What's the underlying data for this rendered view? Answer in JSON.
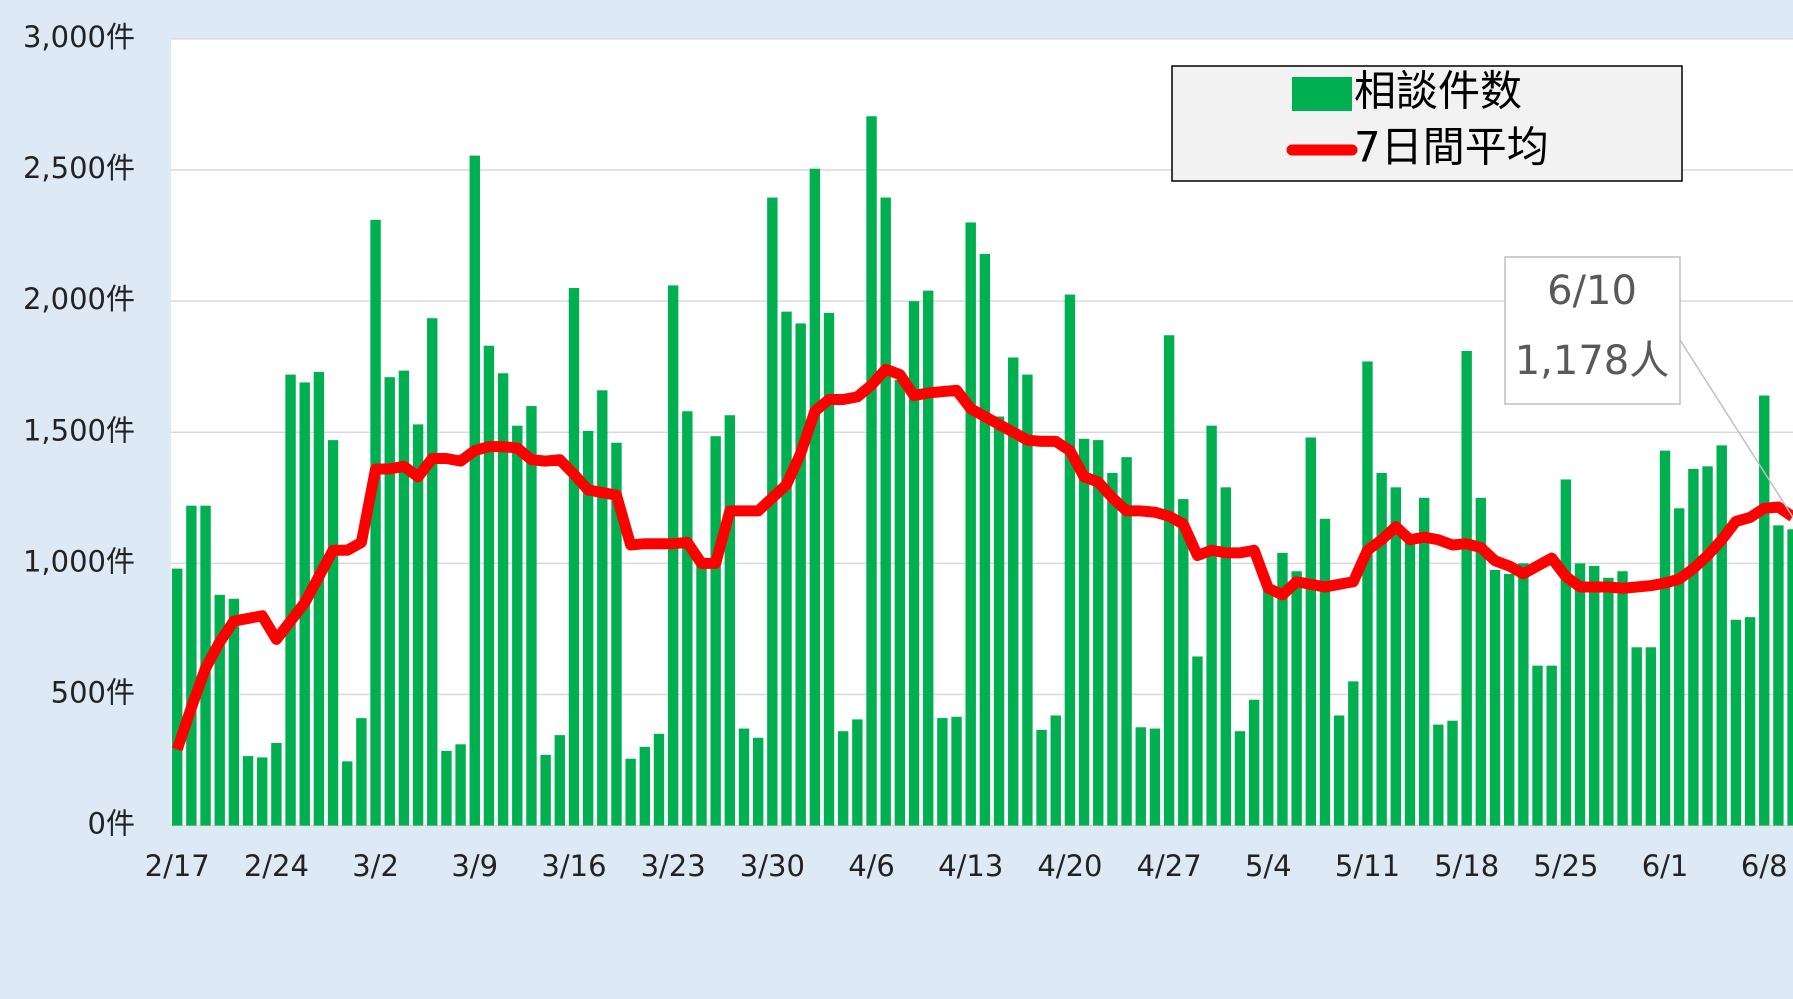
{
  "chart_data": {
    "type": "bar",
    "categories": [
      "2/17",
      null,
      null,
      null,
      null,
      null,
      null,
      "2/24",
      null,
      null,
      null,
      null,
      null,
      null,
      "3/2",
      null,
      null,
      null,
      null,
      null,
      null,
      "3/9",
      null,
      null,
      null,
      null,
      null,
      null,
      "3/16",
      null,
      null,
      null,
      null,
      null,
      null,
      "3/23",
      null,
      null,
      null,
      null,
      null,
      null,
      "3/30",
      null,
      null,
      null,
      null,
      null,
      null,
      "4/6",
      null,
      null,
      null,
      null,
      null,
      null,
      "4/13",
      null,
      null,
      null,
      null,
      null,
      null,
      "4/20",
      null,
      null,
      null,
      null,
      null,
      null,
      "4/27",
      null,
      null,
      null,
      null,
      null,
      null,
      "5/4",
      null,
      null,
      null,
      null,
      null,
      null,
      "5/11",
      null,
      null,
      null,
      null,
      null,
      null,
      "5/18",
      null,
      null,
      null,
      null,
      null,
      null,
      "5/25",
      null,
      null,
      null,
      null,
      null,
      null,
      "6/1",
      null,
      null,
      null,
      null,
      null,
      null,
      "6/8",
      null,
      null
    ],
    "series": [
      {
        "name": "相談件数",
        "type": "bar",
        "color": "#00b050",
        "values": [
          980,
          1220,
          1220,
          880,
          865,
          265,
          260,
          315,
          1720,
          1690,
          1730,
          1470,
          245,
          410,
          2310,
          1710,
          1735,
          1530,
          1935,
          285,
          310,
          2555,
          1830,
          1725,
          1525,
          1600,
          270,
          345,
          2050,
          1505,
          1660,
          1460,
          255,
          300,
          350,
          2060,
          1580,
          1010,
          1485,
          1565,
          370,
          335,
          2395,
          1960,
          1915,
          2505,
          1955,
          360,
          405,
          2705,
          2395,
          1700,
          2000,
          2040,
          410,
          415,
          2300,
          2180,
          1560,
          1785,
          1720,
          365,
          420,
          2025,
          1475,
          1470,
          1345,
          1405,
          375,
          370,
          1870,
          1245,
          645,
          1525,
          1290,
          360,
          480,
          900,
          1040,
          970,
          1480,
          1170,
          420,
          550,
          1770,
          1345,
          1290,
          1080,
          1250,
          385,
          400,
          1810,
          1250,
          975,
          960,
          1000,
          610,
          610,
          1320,
          1000,
          990,
          945,
          970,
          680,
          680,
          1430,
          1210,
          1360,
          1370,
          1450,
          785,
          795,
          1640,
          1145,
          1130
        ]
      },
      {
        "name": "7日間平均",
        "type": "line",
        "color": "#ff0000",
        "values": [
          290,
          450,
          600,
          700,
          780,
          790,
          800,
          710,
          780,
          850,
          950,
          1050,
          1050,
          1080,
          1360,
          1360,
          1370,
          1330,
          1400,
          1400,
          1390,
          1430,
          1445,
          1445,
          1440,
          1395,
          1390,
          1395,
          1340,
          1280,
          1270,
          1260,
          1070,
          1075,
          1075,
          1075,
          1080,
          1000,
          1000,
          1200,
          1200,
          1200,
          1250,
          1300,
          1420,
          1580,
          1625,
          1625,
          1635,
          1680,
          1740,
          1720,
          1640,
          1650,
          1655,
          1660,
          1590,
          1560,
          1530,
          1500,
          1470,
          1465,
          1465,
          1430,
          1330,
          1310,
          1250,
          1200,
          1200,
          1195,
          1180,
          1150,
          1030,
          1050,
          1040,
          1040,
          1050,
          905,
          880,
          930,
          920,
          910,
          920,
          930,
          1050,
          1090,
          1140,
          1090,
          1100,
          1090,
          1070,
          1075,
          1060,
          1010,
          990,
          960,
          990,
          1020,
          950,
          910,
          910,
          910,
          905,
          910,
          915,
          925,
          940,
          980,
          1030,
          1090,
          1160,
          1175,
          1210,
          1215,
          1178
        ]
      }
    ],
    "ylim": [
      0,
      3000
    ],
    "yticks": [
      {
        "value": 0,
        "label": "0件"
      },
      {
        "value": 500,
        "label": "500件"
      },
      {
        "value": 1000,
        "label": "1,000件"
      },
      {
        "value": 1500,
        "label": "1,500件"
      },
      {
        "value": 2000,
        "label": "2,000件"
      },
      {
        "value": 2500,
        "label": "2,500件"
      },
      {
        "value": 3000,
        "label": "3,000件"
      }
    ],
    "grid": true,
    "legend": "upper right",
    "annotations": [
      "6/10",
      "1,178人"
    ]
  }
}
